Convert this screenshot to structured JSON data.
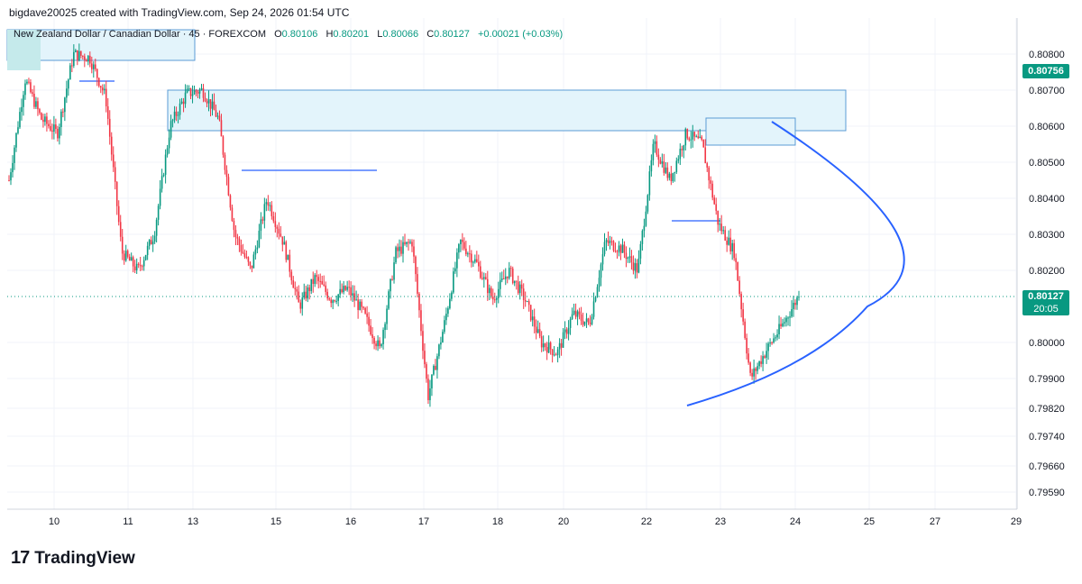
{
  "header": {
    "attribution": "bigdave20025 created with TradingView.com, Sep 24, 2026 01:54 UTC"
  },
  "legend": {
    "symbol": "New Zealand Dollar / Canadian Dollar · 45 · FOREXCOM",
    "open_label": "O",
    "open": "0.80106",
    "high_label": "H",
    "high": "0.80201",
    "low_label": "L",
    "low": "0.80066",
    "close_label": "C",
    "close": "0.80127",
    "change": "+0.00021 (+0.03%)"
  },
  "price_tags": {
    "marker_price": "0.80756",
    "last_price": "0.80127",
    "countdown": "20:05"
  },
  "footer": {
    "brand": "TradingView",
    "brand_mark": "17"
  },
  "colors": {
    "up": "#089981",
    "down": "#f23645",
    "zone_fill": "#e3f4fb",
    "zone_stroke": "#5b9bd5",
    "drawing": "#2962ff",
    "grid": "#f0f3fa",
    "last_line": "#089981"
  },
  "chart_data": {
    "type": "candlestick",
    "title": "New Zealand Dollar / Canadian Dollar · 45 · FOREXCOM",
    "y_ticks": [
      "0.80800",
      "0.80700",
      "0.80600",
      "0.80500",
      "0.80400",
      "0.80300",
      "0.80200",
      "0.80000",
      "0.79900",
      "0.79820",
      "0.79740",
      "0.79660",
      "0.79590"
    ],
    "x_ticks": [
      "10",
      "11",
      "13",
      "15",
      "16",
      "17",
      "18",
      "20",
      "22",
      "23",
      "24",
      "25",
      "27",
      "29"
    ],
    "close_path": [
      0.8045,
      0.8073,
      0.8062,
      0.8058,
      0.808,
      0.8079,
      0.8068,
      0.8025,
      0.802,
      0.803,
      0.806,
      0.8069,
      0.807,
      0.8062,
      0.803,
      0.802,
      0.804,
      0.8028,
      0.801,
      0.8018,
      0.8012,
      0.8015,
      0.8008,
      0.7998,
      0.8025,
      0.8028,
      0.7985,
      0.8005,
      0.8028,
      0.8022,
      0.8012,
      0.802,
      0.8012,
      0.8,
      0.7997,
      0.8008,
      0.8005,
      0.8028,
      0.8026,
      0.802,
      0.8055,
      0.8045,
      0.8058,
      0.8055,
      0.8033,
      0.8025,
      0.799,
      0.7998,
      0.8005,
      0.8013
    ],
    "last_price": 0.80127,
    "grid": true
  }
}
